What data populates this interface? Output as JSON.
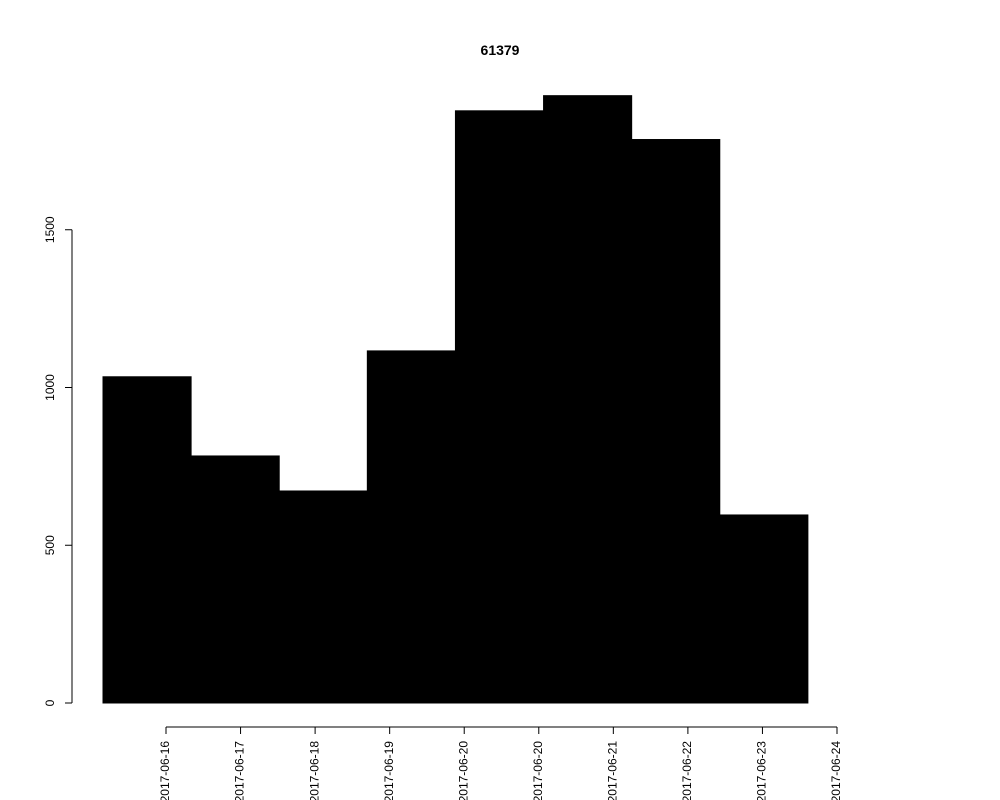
{
  "chart_data": {
    "type": "bar",
    "title": "61379",
    "categories": [
      null,
      null,
      null,
      null,
      null,
      null,
      null,
      null,
      null
    ],
    "values": [
      1034,
      783,
      672,
      1116,
      1877,
      1925,
      1786,
      596,
      0
    ],
    "color": "#000000",
    "ylim": [
      0,
      2000
    ],
    "yticks": [
      0,
      500,
      1000,
      1500
    ],
    "xtick_labels": [
      "2017-06-16",
      "2017-06-17",
      "2017-06-18",
      "2017-06-19",
      "2017-06-20",
      "2017-06-20",
      "2017-06-21",
      "2017-06-22",
      "2017-06-23",
      "2017-06-24"
    ],
    "grid": false
  }
}
